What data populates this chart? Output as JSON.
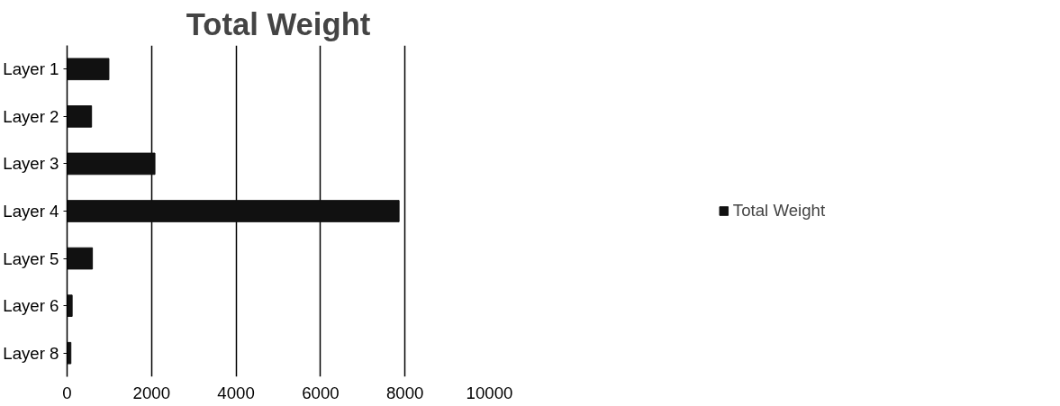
{
  "chart_data": {
    "type": "bar",
    "orientation": "horizontal",
    "title": "Total Weight",
    "categories": [
      "Layer 1",
      "Layer 2",
      "Layer 3",
      "Layer 4",
      "Layer 5",
      "Layer 6",
      "Layer 8"
    ],
    "series": [
      {
        "name": "Total Weight",
        "color": "#111111",
        "values": [
          990,
          580,
          2080,
          7860,
          600,
          120,
          90
        ]
      }
    ],
    "xlim": [
      0,
      10000
    ],
    "xticks": [
      0,
      2000,
      4000,
      6000,
      8000,
      10000
    ],
    "grid": "x",
    "legend": "right"
  }
}
